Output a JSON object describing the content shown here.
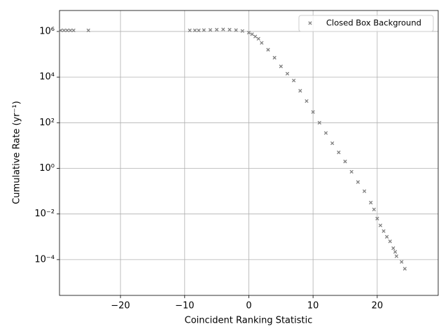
{
  "chart_data": {
    "type": "scatter",
    "log_y": true,
    "grid": true,
    "legend": "upper right",
    "xlabel": "Coincident Ranking Statistic",
    "ylabel": "Cumulative Rate (yr⁻¹)",
    "xlim": [
      -29.5,
      29.5
    ],
    "ylim": [
      2.7e-06,
      8300000
    ],
    "xticks": [
      {
        "value": -20,
        "label": "−20"
      },
      {
        "value": -10,
        "label": "−10"
      },
      0,
      10,
      20
    ],
    "yticks": [
      {
        "value": 0.0001,
        "label": "10⁻⁴"
      },
      {
        "value": 0.01,
        "label": "10⁻²"
      },
      {
        "value": 1,
        "label": "10⁰"
      },
      {
        "value": 100,
        "label": "10²"
      },
      {
        "value": 10000,
        "label": "10⁴"
      },
      {
        "value": 1000000,
        "label": "10⁶"
      }
    ],
    "series": [
      {
        "name": "Closed Box Background",
        "color": "#808080",
        "x": [
          -29.3,
          -28.8,
          -28.3,
          -27.8,
          -27.3,
          -25,
          -9.2,
          -8.4,
          -7.8,
          -7,
          -6,
          -5,
          -4,
          -3,
          -2,
          -1,
          0,
          0.5,
          1,
          1.5,
          2,
          3,
          4,
          5,
          6,
          7,
          8,
          9,
          10,
          11,
          12,
          13,
          14,
          15,
          16,
          17,
          18,
          19,
          19.5,
          20,
          20.5,
          21,
          21.5,
          22,
          22.5,
          22.8,
          23,
          23.8,
          24.3
        ],
        "values": [
          1120000,
          1120000,
          1120000,
          1120000,
          1120000,
          1120000,
          1120000,
          1120000,
          1120000,
          1150000,
          1170000,
          1200000,
          1230000,
          1200000,
          1150000,
          1050000,
          891000,
          759000,
          603000,
          479000,
          316000,
          158000,
          70800,
          29500,
          14100,
          7080,
          2510,
          891,
          295,
          100,
          35.5,
          12.6,
          5.01,
          2.0,
          0.708,
          0.251,
          0.1,
          0.0316,
          0.0158,
          0.00631,
          0.00316,
          0.00178,
          0.001,
          0.000631,
          0.000316,
          0.000219,
          0.000141,
          7.94e-05,
          3.98e-05
        ]
      }
    ]
  }
}
